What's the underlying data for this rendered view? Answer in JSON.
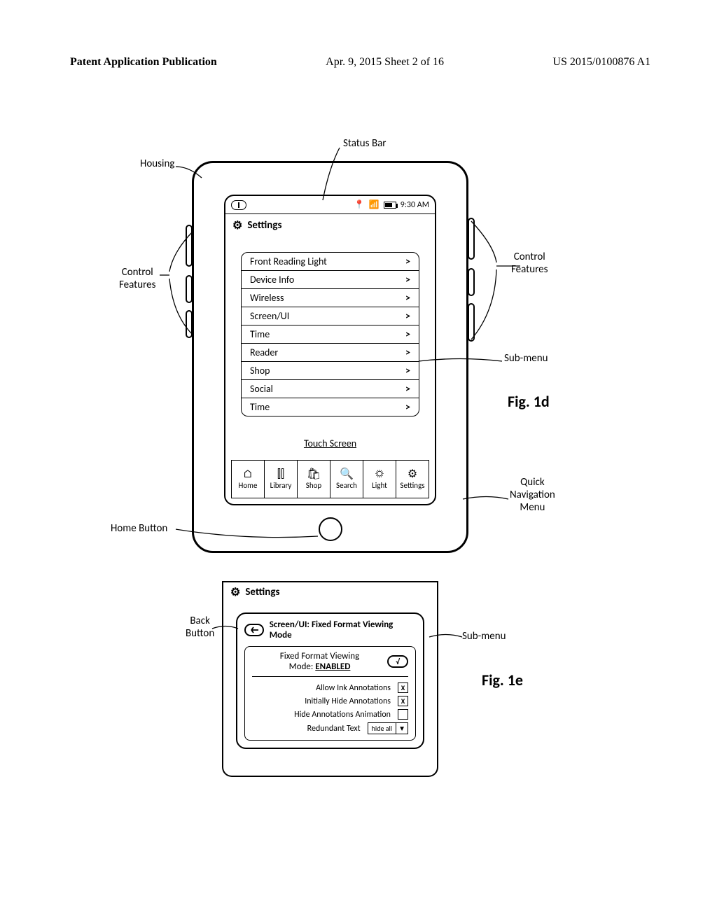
{
  "header": {
    "left": "Patent Application Publication",
    "mid": "Apr. 9, 2015  Sheet 2 of 16",
    "right": "US 2015/0100876 A1"
  },
  "fig1d": {
    "status_time": "9:30 AM",
    "settings_title": "Settings",
    "menu_items": [
      "Front Reading Light",
      "Device Info",
      "Wireless",
      "Screen/UI",
      "Time",
      "Reader",
      "Shop",
      "Social",
      "Time"
    ],
    "touch_label": "Touch Screen",
    "quicknav": [
      {
        "glyph": "⌂",
        "label": "Home"
      },
      {
        "glyph": "⫿⫿",
        "label": "Library"
      },
      {
        "glyph": "🛍",
        "label": "Shop"
      },
      {
        "glyph": "🔍",
        "label": "Search"
      },
      {
        "glyph": "☼",
        "label": "Light"
      },
      {
        "glyph": "⚙",
        "label": "Settings"
      }
    ],
    "callouts": {
      "housing": "Housing",
      "status_bar": "Status Bar",
      "control_left": "Control\nFeatures",
      "control_right": "Control\nFeatures",
      "submenu": "Sub-menu",
      "quicknav_label": "Quick\nNavigation\nMenu",
      "home_button": "Home Button"
    },
    "fig_label": "Fig. 1d"
  },
  "fig1e": {
    "settings_title": "Settings",
    "panel_title": "Screen/UI: Fixed Format Viewing Mode",
    "mode_line_a": "Fixed Format Viewing",
    "mode_line_b": "Mode:",
    "mode_state": "ENABLED",
    "toggle_glyph": "√",
    "options": [
      {
        "label": "Allow Ink Annotations",
        "checked": true
      },
      {
        "label": "Initially Hide Annotations",
        "checked": true
      },
      {
        "label": "Hide Annotations Animation",
        "checked": false
      }
    ],
    "dropdown_label": "Redundant Text",
    "dropdown_value": "hide all",
    "callouts": {
      "back": "Back\nButton",
      "submenu": "Sub-menu"
    },
    "fig_label": "Fig. 1e"
  }
}
